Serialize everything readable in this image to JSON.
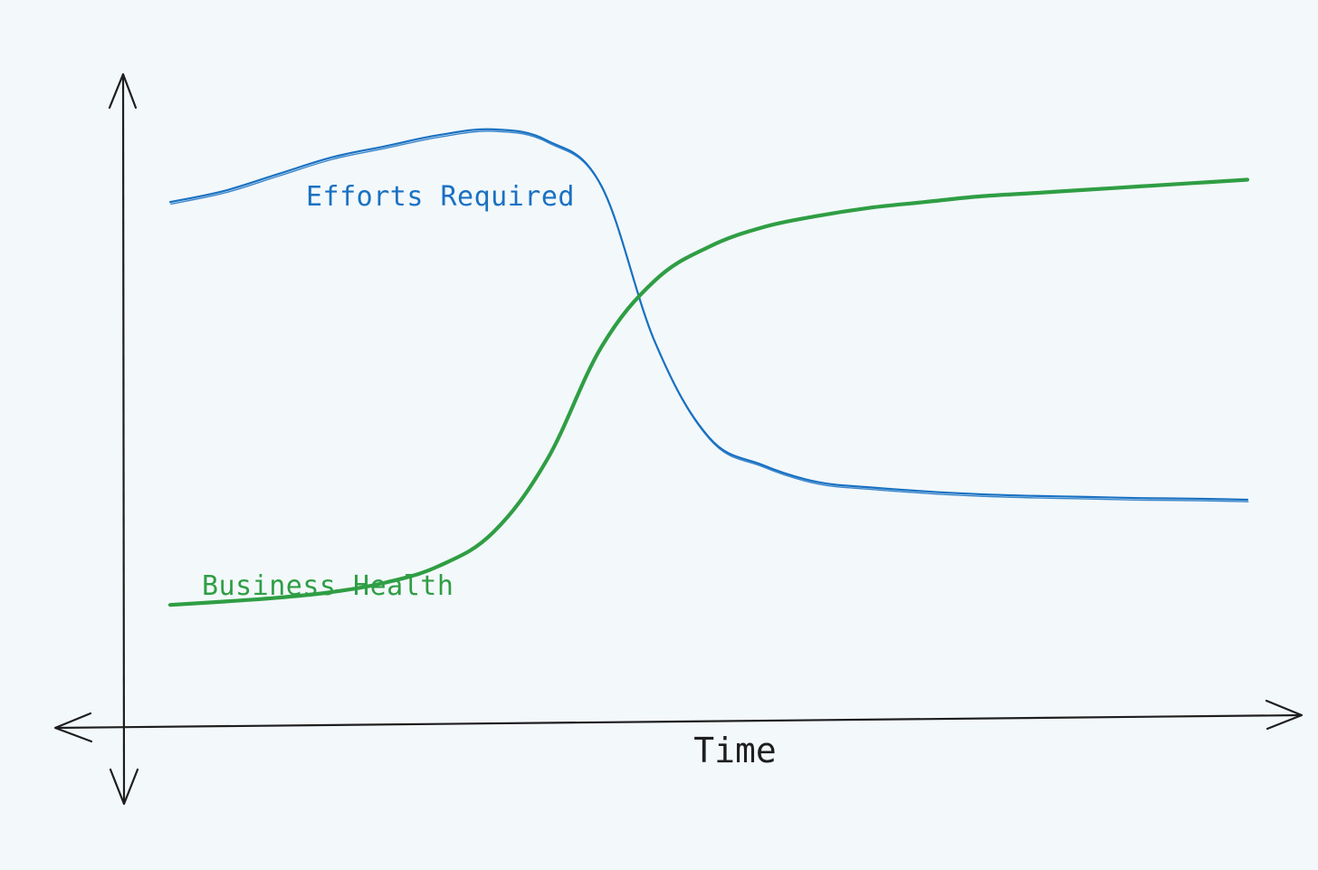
{
  "background_color": "#f3f8fb",
  "axis_color": "#1e1e1e",
  "chart_data": {
    "type": "line",
    "title": "",
    "xlabel": "Time",
    "ylabel": "",
    "grid": false,
    "legend": "none",
    "x": [
      0,
      5,
      10,
      15,
      20,
      25,
      30,
      35,
      40,
      45,
      50,
      55,
      60,
      65,
      70,
      75,
      80,
      85,
      90,
      95,
      100
    ],
    "xlim": [
      0,
      100
    ],
    "ylim": [
      0,
      100
    ],
    "series": [
      {
        "name": "Efforts Required",
        "color": "#1971c2",
        "values": [
          82,
          84,
          87,
          90,
          92,
          94,
          95,
          93,
          85,
          57,
          40,
          35,
          32,
          31,
          30.3,
          29.8,
          29.5,
          29.3,
          29.1,
          29,
          28.8
        ]
      },
      {
        "name": "Business Health",
        "color": "#2f9e44",
        "values": [
          10,
          10.6,
          11.3,
          12.3,
          14,
          17,
          23,
          36,
          56,
          68,
          74,
          77.5,
          79.5,
          81,
          82,
          83,
          83.6,
          84.2,
          84.8,
          85.4,
          86
        ]
      }
    ]
  }
}
